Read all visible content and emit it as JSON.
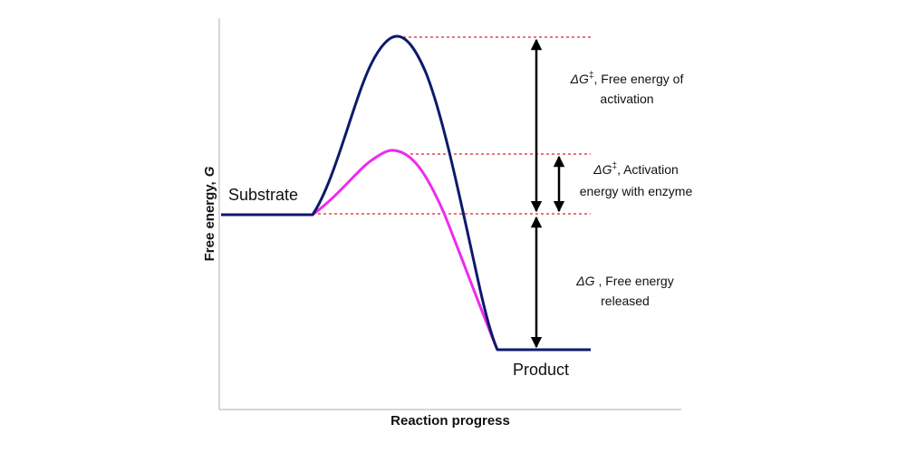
{
  "axes": {
    "y_title": "Free energy,",
    "y_symbol": "G",
    "x_title": "Reaction progress"
  },
  "labels": {
    "substrate": "Substrate",
    "product": "Product"
  },
  "annotations": {
    "activation": {
      "symbol": "ΔG",
      "sup": "‡",
      "line1": ", Free energy of",
      "line2": "activation"
    },
    "enzyme": {
      "symbol": "ΔG",
      "sup": "‡",
      "line1": ", Activation",
      "line2": "energy with enzyme"
    },
    "released": {
      "symbol": "ΔG",
      "line1": " , Free energy",
      "line2": "released"
    }
  },
  "colors": {
    "uncatalyzed_curve": "#0d1a6b",
    "catalyzed_curve": "#ee2bee",
    "guide_lines": "#e0202a",
    "arrows": "#000000",
    "axes": "#c8c8c8"
  }
}
